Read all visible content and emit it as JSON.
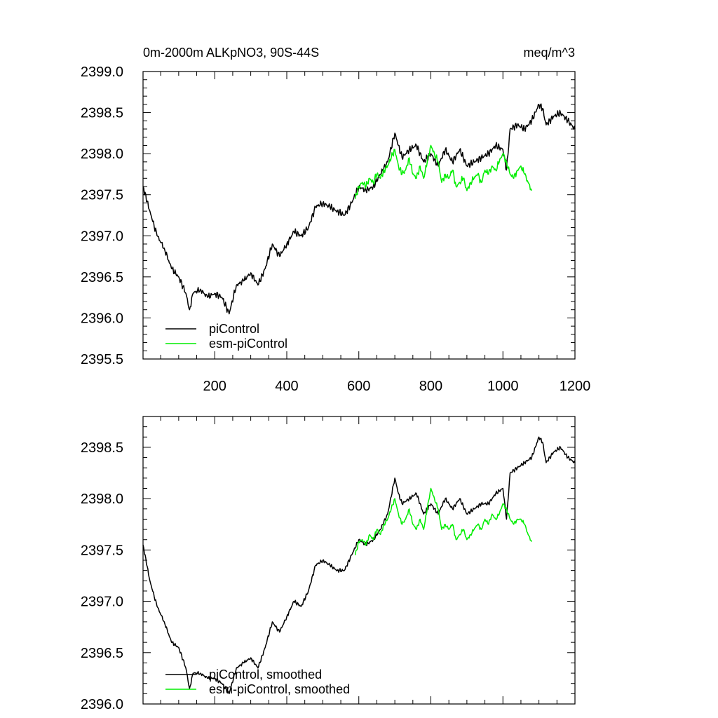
{
  "chart_data": [
    {
      "type": "line",
      "title": "0m-2000m ALKpNO3, 90S-44S",
      "units": "meq/m^3",
      "xlim": [
        1,
        1200
      ],
      "ylim": [
        2395.5,
        2399.0
      ],
      "xticks": [
        200,
        400,
        600,
        800,
        1000,
        1200
      ],
      "yticks": [
        2395.5,
        2396.0,
        2396.5,
        2397.0,
        2397.5,
        2398.0,
        2398.5,
        2399.0
      ],
      "x_tick_labels": [
        "200",
        "400",
        "600",
        "800",
        "1000",
        "1200"
      ],
      "y_tick_labels": [
        "2395.5",
        "2396.0",
        "2396.5",
        "2397.0",
        "2397.5",
        "2398.0",
        "2398.5",
        "2399.0"
      ],
      "legend": [
        "piControl",
        "esm-piControl"
      ],
      "legend_position": "bottom-left",
      "series": [
        {
          "name": "piControl",
          "color": "#000000",
          "x": [
            1,
            20,
            40,
            60,
            80,
            100,
            120,
            130,
            140,
            160,
            180,
            200,
            220,
            240,
            260,
            280,
            300,
            320,
            340,
            360,
            380,
            400,
            420,
            440,
            460,
            480,
            500,
            520,
            540,
            560,
            580,
            600,
            620,
            640,
            660,
            680,
            700,
            710,
            720,
            740,
            760,
            780,
            800,
            820,
            840,
            860,
            880,
            900,
            920,
            940,
            960,
            980,
            1000,
            1010,
            1020,
            1040,
            1060,
            1080,
            1100,
            1110,
            1120,
            1140,
            1160,
            1180,
            1200
          ],
          "y": [
            2397.6,
            2397.3,
            2397.0,
            2396.85,
            2396.6,
            2396.5,
            2396.3,
            2396.1,
            2396.3,
            2396.35,
            2396.25,
            2396.3,
            2396.25,
            2396.05,
            2396.4,
            2396.45,
            2396.55,
            2396.4,
            2396.6,
            2396.9,
            2396.75,
            2396.9,
            2397.05,
            2397.0,
            2397.1,
            2397.35,
            2397.4,
            2397.35,
            2397.3,
            2397.25,
            2397.4,
            2397.6,
            2397.55,
            2397.6,
            2397.75,
            2397.9,
            2398.25,
            2398.1,
            2397.95,
            2398.05,
            2398.1,
            2397.9,
            2398.0,
            2397.85,
            2398.05,
            2397.9,
            2398.05,
            2397.85,
            2397.9,
            2397.95,
            2398.0,
            2398.1,
            2398.05,
            2397.8,
            2398.3,
            2398.35,
            2398.3,
            2398.4,
            2398.6,
            2398.55,
            2398.35,
            2398.45,
            2398.5,
            2398.4,
            2398.3
          ]
        },
        {
          "name": "esm-piControl",
          "color": "#00ee00",
          "x": [
            590,
            600,
            610,
            620,
            630,
            640,
            650,
            660,
            670,
            680,
            690,
            700,
            710,
            720,
            730,
            740,
            750,
            760,
            770,
            780,
            790,
            800,
            810,
            820,
            830,
            840,
            850,
            860,
            870,
            880,
            890,
            900,
            910,
            920,
            930,
            940,
            950,
            960,
            970,
            980,
            990,
            1000,
            1010,
            1020,
            1030,
            1040,
            1050,
            1060,
            1070,
            1080
          ],
          "y": [
            2397.45,
            2397.6,
            2397.65,
            2397.6,
            2397.7,
            2397.65,
            2397.75,
            2397.7,
            2397.8,
            2397.85,
            2397.95,
            2398.05,
            2397.85,
            2397.75,
            2397.8,
            2397.95,
            2397.75,
            2397.7,
            2397.85,
            2397.7,
            2397.9,
            2398.1,
            2398.0,
            2397.9,
            2397.65,
            2397.75,
            2397.7,
            2397.8,
            2397.6,
            2397.65,
            2397.7,
            2397.55,
            2397.65,
            2397.7,
            2397.75,
            2397.65,
            2397.8,
            2397.75,
            2397.85,
            2397.8,
            2397.9,
            2398.0,
            2397.9,
            2397.75,
            2397.7,
            2397.8,
            2397.85,
            2397.75,
            2397.65,
            2397.55
          ]
        }
      ]
    },
    {
      "type": "line",
      "title": "",
      "xlim": [
        1,
        1200
      ],
      "ylim": [
        2396.0,
        2398.8
      ],
      "xticks": [
        200,
        400,
        600,
        800,
        1000,
        1200
      ],
      "yticks": [
        2396.0,
        2396.5,
        2397.0,
        2397.5,
        2398.0,
        2398.5
      ],
      "y_tick_labels": [
        "2396.0",
        "2396.5",
        "2397.0",
        "2397.5",
        "2398.0",
        "2398.5"
      ],
      "legend": [
        "piControl, smoothed",
        "esm-piControl, smoothed"
      ],
      "legend_position": "bottom-left",
      "series": [
        {
          "name": "piControl, smoothed",
          "color": "#000000",
          "x": [
            1,
            20,
            40,
            60,
            80,
            100,
            120,
            130,
            140,
            160,
            180,
            200,
            220,
            240,
            260,
            280,
            300,
            320,
            340,
            360,
            380,
            400,
            420,
            440,
            460,
            480,
            500,
            520,
            540,
            560,
            580,
            600,
            620,
            640,
            660,
            680,
            700,
            710,
            720,
            740,
            760,
            780,
            800,
            820,
            840,
            860,
            880,
            900,
            920,
            940,
            960,
            980,
            1000,
            1010,
            1020,
            1040,
            1060,
            1080,
            1100,
            1110,
            1120,
            1140,
            1160,
            1180,
            1200
          ],
          "y": [
            2397.55,
            2397.2,
            2396.95,
            2396.8,
            2396.6,
            2396.55,
            2396.35,
            2396.15,
            2396.3,
            2396.3,
            2396.25,
            2396.25,
            2396.2,
            2396.1,
            2396.35,
            2396.4,
            2396.45,
            2396.35,
            2396.55,
            2396.8,
            2396.7,
            2396.85,
            2397.0,
            2396.95,
            2397.1,
            2397.35,
            2397.4,
            2397.35,
            2397.3,
            2397.3,
            2397.45,
            2397.6,
            2397.55,
            2397.6,
            2397.7,
            2397.85,
            2398.2,
            2398.05,
            2397.95,
            2398.0,
            2398.05,
            2397.85,
            2397.95,
            2397.85,
            2398.0,
            2397.9,
            2398.0,
            2397.85,
            2397.9,
            2397.95,
            2397.95,
            2398.05,
            2398.1,
            2397.8,
            2398.25,
            2398.3,
            2398.35,
            2398.4,
            2398.6,
            2398.55,
            2398.35,
            2398.45,
            2398.5,
            2398.4,
            2398.35
          ]
        },
        {
          "name": "esm-piControl, smoothed",
          "color": "#00ee00",
          "x": [
            590,
            600,
            610,
            620,
            630,
            640,
            650,
            660,
            670,
            680,
            690,
            700,
            710,
            720,
            730,
            740,
            750,
            760,
            770,
            780,
            790,
            800,
            810,
            820,
            830,
            840,
            850,
            860,
            870,
            880,
            890,
            900,
            910,
            920,
            930,
            940,
            950,
            960,
            970,
            980,
            990,
            1000,
            1010,
            1020,
            1030,
            1040,
            1050,
            1060,
            1070,
            1080
          ],
          "y": [
            2397.45,
            2397.58,
            2397.6,
            2397.55,
            2397.65,
            2397.6,
            2397.7,
            2397.65,
            2397.75,
            2397.8,
            2397.9,
            2398.0,
            2397.85,
            2397.75,
            2397.8,
            2397.9,
            2397.75,
            2397.7,
            2397.8,
            2397.7,
            2397.9,
            2398.1,
            2398.0,
            2397.9,
            2397.7,
            2397.75,
            2397.7,
            2397.75,
            2397.6,
            2397.65,
            2397.7,
            2397.6,
            2397.65,
            2397.7,
            2397.75,
            2397.7,
            2397.8,
            2397.75,
            2397.85,
            2397.8,
            2397.85,
            2397.95,
            2397.9,
            2397.8,
            2397.75,
            2397.8,
            2397.8,
            2397.75,
            2397.65,
            2397.58
          ]
        }
      ]
    }
  ]
}
